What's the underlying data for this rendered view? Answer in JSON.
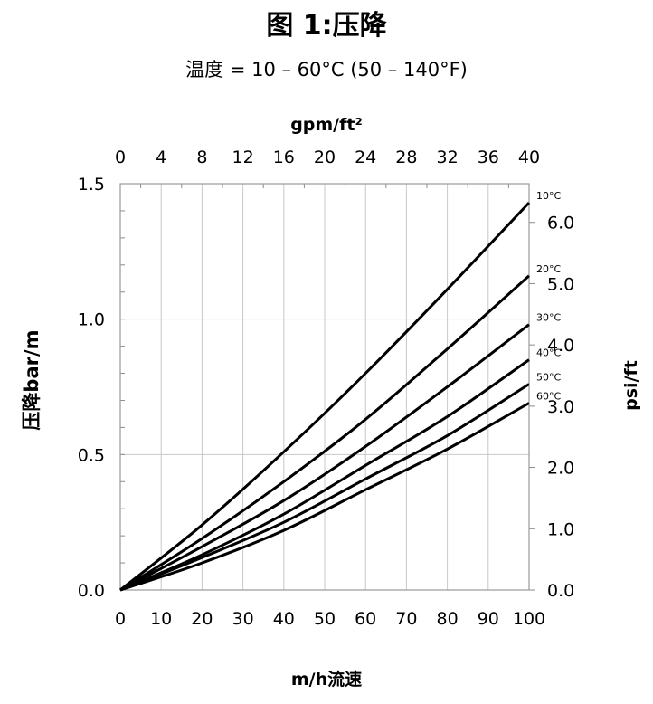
{
  "chart_data": {
    "type": "line",
    "title": "图 1:压降",
    "subtitle": "温度 = 10 – 60°C (50 – 140°F)",
    "xlabel": "m/h流速",
    "ylabel": "压降bar/m",
    "x2label": "gpm/ft²",
    "y2label": "psi/ft",
    "xlim": [
      0,
      100
    ],
    "ylim": [
      0,
      1.5
    ],
    "x_ticks": [
      "0",
      "10",
      "20",
      "30",
      "40",
      "50",
      "60",
      "70",
      "80",
      "90",
      "100"
    ],
    "y_ticks": [
      "0.0",
      "0.5",
      "1.0",
      "1.5"
    ],
    "x2_ticks": [
      "0",
      "4",
      "8",
      "12",
      "16",
      "20",
      "24",
      "28",
      "32",
      "36",
      "40"
    ],
    "y2_ticks": [
      "0.0",
      "1.0",
      "2.0",
      "3.0",
      "4.0",
      "5.0",
      "6.0"
    ],
    "grid": true,
    "series": [
      {
        "name": "10°C",
        "x": [
          0,
          20,
          40,
          60,
          80,
          100
        ],
        "values": [
          0,
          0.24,
          0.51,
          0.8,
          1.11,
          1.43
        ]
      },
      {
        "name": "20°C",
        "x": [
          0,
          20,
          40,
          60,
          80,
          100
        ],
        "values": [
          0,
          0.19,
          0.4,
          0.63,
          0.89,
          1.16
        ]
      },
      {
        "name": "30°C",
        "x": [
          0,
          20,
          40,
          60,
          80,
          100
        ],
        "values": [
          0,
          0.16,
          0.33,
          0.53,
          0.75,
          0.98
        ]
      },
      {
        "name": "40°C",
        "x": [
          0,
          20,
          40,
          60,
          80,
          100
        ],
        "values": [
          0,
          0.13,
          0.28,
          0.46,
          0.64,
          0.85
        ]
      },
      {
        "name": "50°C",
        "x": [
          0,
          20,
          40,
          60,
          80,
          100
        ],
        "values": [
          0,
          0.12,
          0.25,
          0.41,
          0.57,
          0.76
        ]
      },
      {
        "name": "60°C",
        "x": [
          0,
          20,
          40,
          60,
          80,
          100
        ],
        "values": [
          0,
          0.1,
          0.22,
          0.37,
          0.52,
          0.69
        ]
      }
    ]
  }
}
